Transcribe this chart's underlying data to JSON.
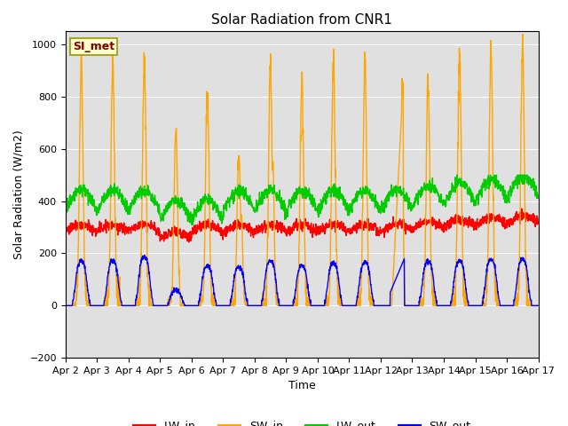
{
  "title": "Solar Radiation from CNR1",
  "xlabel": "Time",
  "ylabel": "Solar Radiation (W/m2)",
  "xlim_days": [
    0,
    15
  ],
  "ylim": [
    -200,
    1050
  ],
  "yticks": [
    -200,
    0,
    200,
    400,
    600,
    800,
    1000
  ],
  "xtick_labels": [
    "Apr 2",
    "Apr 3",
    "Apr 4",
    "Apr 5",
    "Apr 6",
    "Apr 7",
    "Apr 8",
    "Apr 9",
    "Apr 10",
    "Apr 11",
    "Apr 12",
    "Apr 13",
    "Apr 14",
    "Apr 15",
    "Apr 16",
    "Apr 17"
  ],
  "series_colors": {
    "LW_in": "#ff0000",
    "SW_in": "#ffa500",
    "LW_out": "#00cc00",
    "SW_out": "#0000ff"
  },
  "legend_text_color": "#800000",
  "annotation_box": "SI_met",
  "background_color": "#e0e0e0",
  "figure_bg": "#ffffff",
  "linewidth": 1.0
}
